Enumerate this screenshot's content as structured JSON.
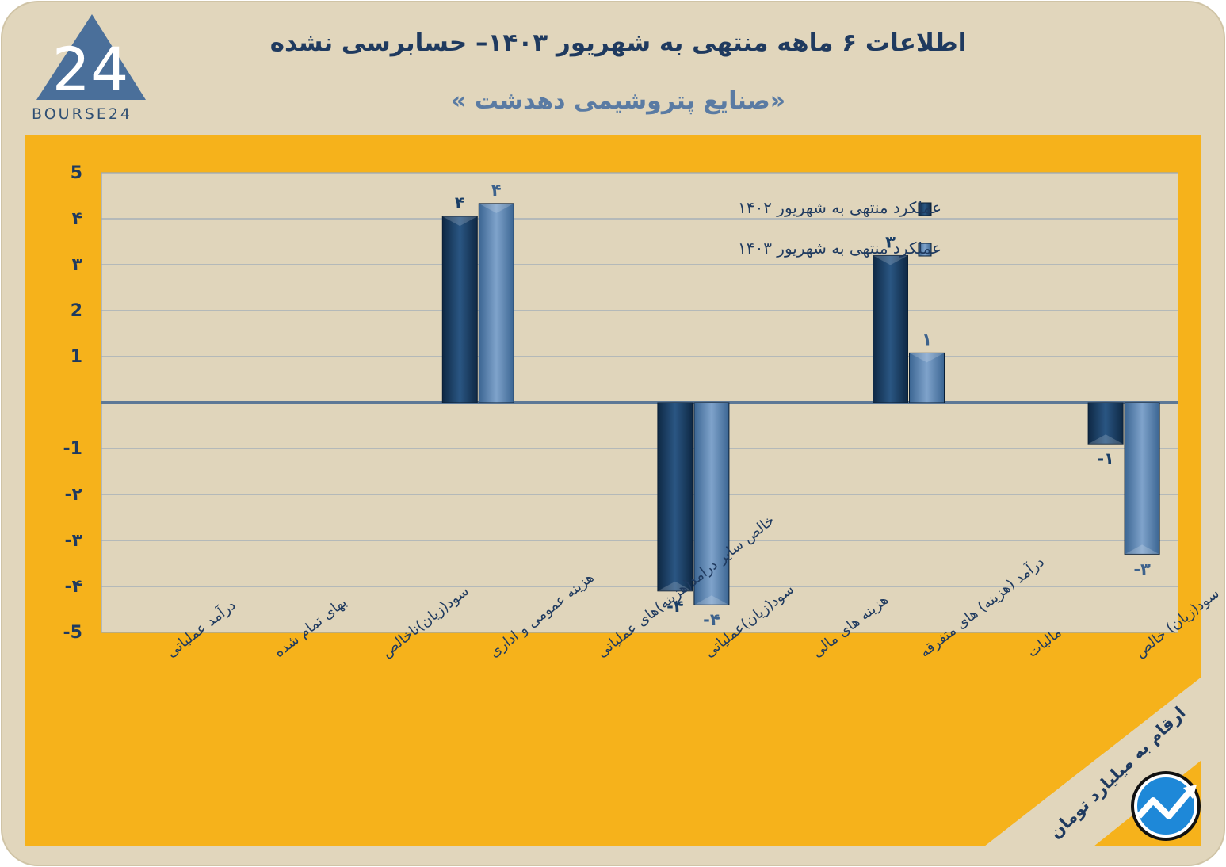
{
  "header": {
    "title": "اطلاعات ۶ ماهه منتهی به شهریور ۱۴۰۳– حسابرسی نشده",
    "subtitle": "«صنایع پتروشیمی دهدشت »",
    "logo_text": "BOURSE24",
    "logo_mark": "24"
  },
  "note": "ارقام به میلیارد تومان",
  "colors": {
    "background": "#e1d6bc",
    "panel": "#f6b21b",
    "plot_bg": "#e0d5bb",
    "series_1402": "#1a3e66",
    "series_1403": "#5c84b1",
    "text": "#1f3a5f"
  },
  "chart_data": {
    "type": "bar",
    "categories": [
      "درآمد عملیاتی",
      "بهای تمام شده",
      "سود(زیان)ناخالص",
      "هزینه عمومی و اداری",
      "خالص سایر درامد(هزینه)های عملیاتی",
      "سود(زیان)عملیاتی",
      "هزینه های مالی",
      "درآمد (هزینه) های متفرقه",
      "مالیات",
      "سود(زیان) خالص"
    ],
    "series": [
      {
        "name": "عملکرد منتهی به شهریور ۱۴۰۲",
        "values": [
          null,
          null,
          null,
          4.05,
          null,
          -4.1,
          null,
          3.2,
          null,
          -0.9
        ],
        "labels": [
          "",
          "",
          "",
          "۴",
          "",
          "-۴",
          "",
          "۳",
          "",
          "-۱"
        ]
      },
      {
        "name": "عملکرد منتهی به شهریور ۱۴۰۳",
        "values": [
          null,
          null,
          null,
          4.33,
          null,
          -4.4,
          null,
          1.08,
          null,
          -3.3
        ],
        "labels": [
          "",
          "",
          "",
          "۴",
          "",
          "-۴",
          "",
          "۱",
          "",
          "-۳"
        ]
      }
    ],
    "y_ticks": [
      5,
      4,
      3,
      2,
      1,
      -1,
      -2,
      -3,
      -4,
      -5
    ],
    "y_tick_labels": [
      "5",
      "۴",
      "۳",
      "2",
      "1",
      "-1",
      "-۲",
      "-۳",
      "-۴",
      "-5"
    ],
    "ylim": [
      -5,
      5
    ],
    "grid": true,
    "legend_position": "top-right"
  }
}
